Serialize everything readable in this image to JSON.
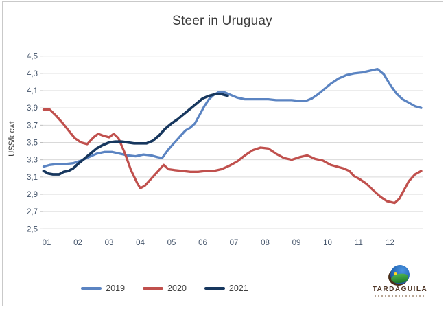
{
  "chart_data": {
    "type": "line",
    "title": "Steer in Uruguay",
    "xlabel": "",
    "ylabel": "US$/k cwt",
    "y_range": [
      2.5,
      4.5
    ],
    "y_tick_step": 0.2,
    "grid": true,
    "legend_position": "bottom",
    "y_ticks": [
      "4,5",
      "4,3",
      "4,1",
      "3,9",
      "3,7",
      "3,5",
      "3,3",
      "3,1",
      "2,9",
      "2,7",
      "2,5"
    ],
    "x_ticks": [
      "01",
      "02",
      "03",
      "04",
      "05",
      "06",
      "07",
      "08",
      "09",
      "10",
      "11",
      "12"
    ],
    "series": [
      {
        "name": "2019",
        "color": "#5b84c2",
        "points": [
          [
            0.9,
            3.22
          ],
          [
            1.1,
            3.24
          ],
          [
            1.35,
            3.25
          ],
          [
            1.6,
            3.25
          ],
          [
            1.85,
            3.26
          ],
          [
            2.1,
            3.29
          ],
          [
            2.35,
            3.33
          ],
          [
            2.6,
            3.37
          ],
          [
            2.85,
            3.39
          ],
          [
            3.1,
            3.39
          ],
          [
            3.35,
            3.37
          ],
          [
            3.6,
            3.35
          ],
          [
            3.85,
            3.34
          ],
          [
            4.1,
            3.36
          ],
          [
            4.35,
            3.35
          ],
          [
            4.55,
            3.33
          ],
          [
            4.7,
            3.32
          ],
          [
            4.9,
            3.42
          ],
          [
            5.1,
            3.5
          ],
          [
            5.3,
            3.58
          ],
          [
            5.45,
            3.64
          ],
          [
            5.6,
            3.67
          ],
          [
            5.75,
            3.72
          ],
          [
            5.9,
            3.82
          ],
          [
            6.05,
            3.92
          ],
          [
            6.2,
            4.0
          ],
          [
            6.35,
            4.05
          ],
          [
            6.5,
            4.08
          ],
          [
            6.7,
            4.08
          ],
          [
            6.9,
            4.05
          ],
          [
            7.1,
            4.02
          ],
          [
            7.35,
            4.0
          ],
          [
            7.6,
            4.0
          ],
          [
            7.85,
            4.0
          ],
          [
            8.1,
            4.0
          ],
          [
            8.35,
            3.99
          ],
          [
            8.6,
            3.99
          ],
          [
            8.85,
            3.99
          ],
          [
            9.1,
            3.98
          ],
          [
            9.3,
            3.98
          ],
          [
            9.5,
            4.01
          ],
          [
            9.7,
            4.06
          ],
          [
            9.9,
            4.12
          ],
          [
            10.1,
            4.18
          ],
          [
            10.35,
            4.24
          ],
          [
            10.6,
            4.28
          ],
          [
            10.85,
            4.3
          ],
          [
            11.1,
            4.31
          ],
          [
            11.35,
            4.33
          ],
          [
            11.6,
            4.35
          ],
          [
            11.8,
            4.29
          ],
          [
            12.0,
            4.17
          ],
          [
            12.2,
            4.07
          ],
          [
            12.4,
            4.0
          ],
          [
            12.6,
            3.96
          ],
          [
            12.8,
            3.92
          ],
          [
            13.0,
            3.9
          ]
        ]
      },
      {
        "name": "2020",
        "color": "#c0504d",
        "points": [
          [
            0.9,
            3.88
          ],
          [
            1.1,
            3.88
          ],
          [
            1.3,
            3.81
          ],
          [
            1.5,
            3.73
          ],
          [
            1.7,
            3.64
          ],
          [
            1.9,
            3.55
          ],
          [
            2.1,
            3.5
          ],
          [
            2.3,
            3.48
          ],
          [
            2.5,
            3.56
          ],
          [
            2.65,
            3.6
          ],
          [
            2.8,
            3.58
          ],
          [
            3.0,
            3.56
          ],
          [
            3.15,
            3.6
          ],
          [
            3.3,
            3.55
          ],
          [
            3.5,
            3.38
          ],
          [
            3.7,
            3.18
          ],
          [
            3.9,
            3.03
          ],
          [
            4.0,
            2.97
          ],
          [
            4.15,
            3.0
          ],
          [
            4.35,
            3.08
          ],
          [
            4.55,
            3.16
          ],
          [
            4.75,
            3.24
          ],
          [
            4.9,
            3.19
          ],
          [
            5.1,
            3.18
          ],
          [
            5.35,
            3.17
          ],
          [
            5.6,
            3.16
          ],
          [
            5.85,
            3.16
          ],
          [
            6.1,
            3.17
          ],
          [
            6.35,
            3.17
          ],
          [
            6.6,
            3.19
          ],
          [
            6.85,
            3.23
          ],
          [
            7.1,
            3.28
          ],
          [
            7.35,
            3.35
          ],
          [
            7.6,
            3.41
          ],
          [
            7.85,
            3.44
          ],
          [
            8.1,
            3.43
          ],
          [
            8.35,
            3.37
          ],
          [
            8.6,
            3.32
          ],
          [
            8.85,
            3.3
          ],
          [
            9.1,
            3.33
          ],
          [
            9.35,
            3.35
          ],
          [
            9.6,
            3.31
          ],
          [
            9.85,
            3.29
          ],
          [
            10.1,
            3.24
          ],
          [
            10.3,
            3.22
          ],
          [
            10.5,
            3.2
          ],
          [
            10.7,
            3.17
          ],
          [
            10.85,
            3.11
          ],
          [
            11.05,
            3.07
          ],
          [
            11.25,
            3.02
          ],
          [
            11.45,
            2.95
          ],
          [
            11.7,
            2.87
          ],
          [
            11.9,
            2.82
          ],
          [
            12.15,
            2.8
          ],
          [
            12.3,
            2.85
          ],
          [
            12.45,
            2.95
          ],
          [
            12.6,
            3.05
          ],
          [
            12.8,
            3.13
          ],
          [
            13.0,
            3.17
          ]
        ]
      },
      {
        "name": "2021",
        "color": "#17375e",
        "points": [
          [
            0.9,
            3.17
          ],
          [
            1.05,
            3.14
          ],
          [
            1.2,
            3.13
          ],
          [
            1.4,
            3.13
          ],
          [
            1.55,
            3.16
          ],
          [
            1.7,
            3.17
          ],
          [
            1.85,
            3.2
          ],
          [
            2.0,
            3.25
          ],
          [
            2.2,
            3.31
          ],
          [
            2.4,
            3.37
          ],
          [
            2.6,
            3.43
          ],
          [
            2.8,
            3.47
          ],
          [
            3.0,
            3.5
          ],
          [
            3.2,
            3.51
          ],
          [
            3.4,
            3.51
          ],
          [
            3.6,
            3.5
          ],
          [
            3.8,
            3.49
          ],
          [
            4.0,
            3.49
          ],
          [
            4.2,
            3.49
          ],
          [
            4.4,
            3.52
          ],
          [
            4.6,
            3.58
          ],
          [
            4.8,
            3.66
          ],
          [
            5.0,
            3.72
          ],
          [
            5.2,
            3.77
          ],
          [
            5.4,
            3.83
          ],
          [
            5.6,
            3.89
          ],
          [
            5.8,
            3.95
          ],
          [
            6.0,
            4.01
          ],
          [
            6.2,
            4.04
          ],
          [
            6.4,
            4.06
          ],
          [
            6.6,
            4.06
          ],
          [
            6.8,
            4.04
          ]
        ]
      }
    ]
  },
  "logo": {
    "brand": "TARDAGUILA"
  }
}
